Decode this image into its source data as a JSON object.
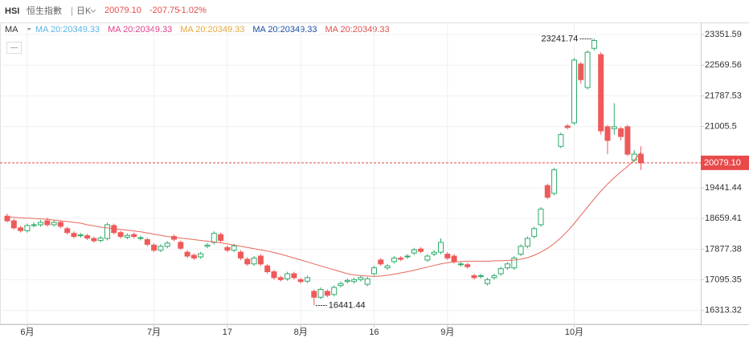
{
  "chart_data": {
    "type": "candlestick",
    "symbol": "HSI",
    "name": "恒生指數",
    "period": "日K",
    "quote": {
      "price": "20079.10",
      "change": "-207.75",
      "change_pct": "-1.02%"
    },
    "legend_title": "MA",
    "legend": [
      {
        "text": "MA 20:20349.33",
        "color": "#5ab4e5"
      },
      {
        "text": "MA 20:20349.33",
        "color": "#e0408a"
      },
      {
        "text": "MA 20:20349.33",
        "color": "#e8a838"
      },
      {
        "text": "MA 20:20349.33",
        "color": "#1a4fa0"
      },
      {
        "text": "MA 20:20349.33",
        "color": "#e05050"
      }
    ],
    "up_color": "#2eaa6a",
    "down_color": "#ee5a5a",
    "ma_color": "#e8675a",
    "grid": true,
    "ylim": [
      15980,
      23660
    ],
    "yticks": [
      16313.32,
      17095.35,
      17877.38,
      18659.41,
      19441.44,
      21005.5,
      21787.53,
      22569.56,
      23351.59
    ],
    "current": {
      "value": 20079.1,
      "label": "20079.10"
    },
    "annotations": [
      {
        "value": 23241.74,
        "label": "23241.74"
      },
      {
        "value": 16441.44,
        "label": "16441.44"
      }
    ],
    "categories": [
      null,
      null,
      null,
      "6月",
      null,
      null,
      null,
      null,
      null,
      null,
      null,
      null,
      null,
      null,
      null,
      null,
      null,
      null,
      null,
      null,
      null,
      null,
      "7月",
      null,
      null,
      null,
      null,
      null,
      null,
      null,
      null,
      null,
      null,
      "17",
      null,
      null,
      null,
      null,
      null,
      null,
      null,
      null,
      null,
      null,
      "8月",
      null,
      null,
      null,
      null,
      null,
      null,
      null,
      null,
      null,
      null,
      "16",
      null,
      null,
      null,
      null,
      null,
      null,
      null,
      null,
      null,
      null,
      "9月",
      null,
      null,
      null,
      null,
      null,
      null,
      null,
      null,
      null,
      null,
      null,
      null,
      null,
      null,
      null,
      null,
      null,
      null,
      "10月",
      null,
      null,
      null,
      null,
      null,
      null,
      null,
      null,
      null,
      null
    ],
    "ohlc": [
      [
        18720,
        18780,
        18560,
        18600
      ],
      [
        18600,
        18650,
        18380,
        18420
      ],
      [
        18420,
        18470,
        18300,
        18350
      ],
      [
        18350,
        18530,
        18300,
        18480
      ],
      [
        18480,
        18560,
        18430,
        18500
      ],
      [
        18500,
        18620,
        18450,
        18560
      ],
      [
        18600,
        18680,
        18450,
        18500
      ],
      [
        18500,
        18610,
        18450,
        18560
      ],
      [
        18560,
        18600,
        18410,
        18460
      ],
      [
        18400,
        18450,
        18250,
        18300
      ],
      [
        18280,
        18330,
        18150,
        18200
      ],
      [
        18220,
        18290,
        18170,
        18240
      ],
      [
        18220,
        18270,
        18110,
        18160
      ],
      [
        18150,
        18200,
        18040,
        18090
      ],
      [
        18100,
        18210,
        18050,
        18160
      ],
      [
        18150,
        18550,
        18100,
        18500
      ],
      [
        18480,
        18530,
        18250,
        18300
      ],
      [
        18300,
        18350,
        18150,
        18200
      ],
      [
        18180,
        18280,
        18130,
        18230
      ],
      [
        18250,
        18300,
        18150,
        18200
      ],
      [
        18150,
        18220,
        18100,
        18170
      ],
      [
        18120,
        18170,
        17950,
        18000
      ],
      [
        17980,
        18030,
        17800,
        17850
      ],
      [
        17850,
        18000,
        17800,
        17950
      ],
      [
        17950,
        18080,
        17900,
        18030
      ],
      [
        18200,
        18250,
        18080,
        18130
      ],
      [
        18050,
        18100,
        17850,
        17900
      ],
      [
        17800,
        17850,
        17650,
        17700
      ],
      [
        17720,
        17770,
        17600,
        17650
      ],
      [
        17680,
        17810,
        17630,
        17760
      ],
      [
        17950,
        18030,
        17900,
        17980
      ],
      [
        18050,
        18330,
        18000,
        18280
      ],
      [
        18250,
        18300,
        18050,
        18100
      ],
      [
        17920,
        17970,
        17800,
        17850
      ],
      [
        17850,
        18010,
        17800,
        17960
      ],
      [
        17800,
        17850,
        17600,
        17650
      ],
      [
        17620,
        17670,
        17450,
        17500
      ],
      [
        17500,
        17700,
        17450,
        17650
      ],
      [
        17700,
        17750,
        17450,
        17500
      ],
      [
        17450,
        17500,
        17250,
        17300
      ],
      [
        17300,
        17350,
        17100,
        17150
      ],
      [
        17150,
        17200,
        17050,
        17100
      ],
      [
        17120,
        17300,
        17070,
        17250
      ],
      [
        17250,
        17300,
        17100,
        17150
      ],
      [
        17100,
        17150,
        17000,
        17050
      ],
      [
        17060,
        17200,
        17010,
        17150
      ],
      [
        16800,
        16850,
        16441.44,
        16650
      ],
      [
        16650,
        16900,
        16600,
        16850
      ],
      [
        16800,
        16850,
        16650,
        16700
      ],
      [
        16720,
        16950,
        16670,
        16900
      ],
      [
        16950,
        17050,
        16900,
        17000
      ],
      [
        17050,
        17130,
        17000,
        17080
      ],
      [
        17050,
        17150,
        17000,
        17100
      ],
      [
        17100,
        17200,
        17050,
        17150
      ],
      [
        16980,
        17170,
        16930,
        17120
      ],
      [
        17250,
        17450,
        17200,
        17400
      ],
      [
        17600,
        17650,
        17450,
        17500
      ],
      [
        17400,
        17500,
        17350,
        17450
      ],
      [
        17560,
        17700,
        17510,
        17650
      ],
      [
        17650,
        17700,
        17570,
        17620
      ],
      [
        17680,
        17750,
        17630,
        17700
      ],
      [
        17780,
        17910,
        17730,
        17860
      ],
      [
        17880,
        17930,
        17770,
        17820
      ],
      [
        17600,
        17750,
        17550,
        17700
      ],
      [
        17750,
        17850,
        17700,
        17800
      ],
      [
        17800,
        18150,
        17750,
        18050
      ],
      [
        17750,
        17800,
        17600,
        17650
      ],
      [
        17700,
        17750,
        17510,
        17560
      ],
      [
        17480,
        17550,
        17430,
        17500
      ],
      [
        17480,
        17530,
        17380,
        17430
      ],
      [
        17200,
        17250,
        17100,
        17150
      ],
      [
        17180,
        17250,
        17130,
        17200
      ],
      [
        17000,
        17150,
        16950,
        17100
      ],
      [
        17150,
        17250,
        17100,
        17200
      ],
      [
        17250,
        17430,
        17200,
        17380
      ],
      [
        17400,
        17550,
        17350,
        17500
      ],
      [
        17400,
        17700,
        17350,
        17650
      ],
      [
        17750,
        18000,
        17700,
        17950
      ],
      [
        17950,
        18200,
        17900,
        18150
      ],
      [
        18200,
        18450,
        18150,
        18400
      ],
      [
        18500,
        18950,
        18450,
        18900
      ],
      [
        19500,
        19550,
        19150,
        19200
      ],
      [
        19300,
        19950,
        19250,
        19900
      ],
      [
        20500,
        20850,
        20450,
        20800
      ],
      [
        21020,
        21070,
        20930,
        20980
      ],
      [
        21100,
        22750,
        21050,
        22700
      ],
      [
        22600,
        22650,
        22100,
        22200
      ],
      [
        22000,
        22950,
        21950,
        22900
      ],
      [
        23000,
        23241.74,
        22950,
        23200
      ],
      [
        22840,
        22900,
        20800,
        20895
      ],
      [
        21000,
        21050,
        20300,
        20650
      ],
      [
        20950,
        21600,
        20800,
        21000
      ],
      [
        20950,
        21000,
        20650,
        20750
      ],
      [
        21000,
        21050,
        20250,
        20300
      ],
      [
        20150,
        20400,
        20100,
        20300
      ],
      [
        20300,
        20500,
        19900,
        20079.1
      ]
    ],
    "ma": [
      18700,
      18690,
      18680,
      18670,
      18660,
      18650,
      18640,
      18620,
      18600,
      18580,
      18560,
      18540,
      18500,
      18470,
      18440,
      18420,
      18400,
      18380,
      18360,
      18340,
      18320,
      18290,
      18260,
      18230,
      18200,
      18180,
      18160,
      18140,
      18120,
      18100,
      18080,
      18060,
      18040,
      18010,
      17980,
      17950,
      17920,
      17890,
      17860,
      17830,
      17790,
      17750,
      17700,
      17650,
      17600,
      17550,
      17500,
      17450,
      17400,
      17350,
      17300,
      17250,
      17220,
      17200,
      17190,
      17180,
      17190,
      17210,
      17240,
      17270,
      17300,
      17340,
      17380,
      17420,
      17460,
      17500,
      17530,
      17550,
      17560,
      17570,
      17570,
      17570,
      17570,
      17580,
      17580,
      17590,
      17600,
      17620,
      17660,
      17720,
      17800,
      17900,
      18020,
      18170,
      18340,
      18530,
      18740,
      18950,
      19160,
      19360,
      19540,
      19700,
      19850,
      19990,
      20150,
      20349.33
    ]
  }
}
